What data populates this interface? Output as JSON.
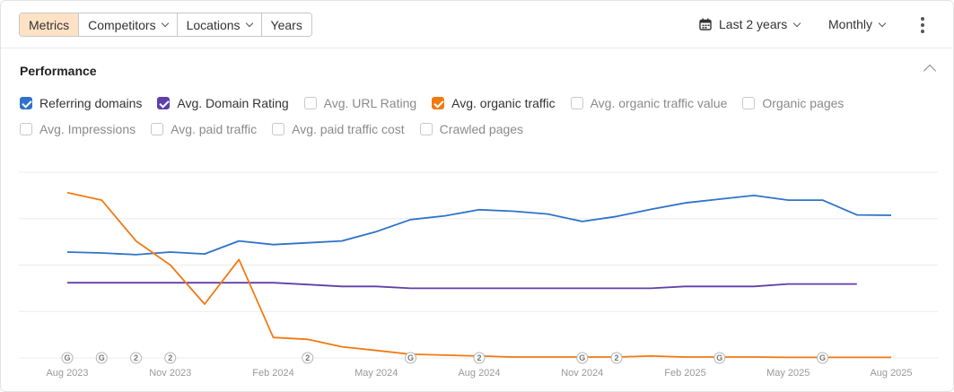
{
  "toolbar": {
    "tabs": [
      {
        "label": "Metrics",
        "active": true,
        "dropdown": false
      },
      {
        "label": "Competitors",
        "active": false,
        "dropdown": true
      },
      {
        "label": "Locations",
        "active": false,
        "dropdown": true
      },
      {
        "label": "Years",
        "active": false,
        "dropdown": false
      }
    ],
    "date_range": "Last 2 years",
    "interval": "Monthly",
    "icons": {
      "date_range": "calendar-icon",
      "more": "more-vertical-icon"
    }
  },
  "section": {
    "title": "Performance",
    "collapse_icon": "chevron-up-icon"
  },
  "metrics": [
    {
      "label": "Referring domains",
      "checked": true,
      "color": "#2f73c9"
    },
    {
      "label": "Avg. Domain Rating",
      "checked": true,
      "color": "#5f3fa8"
    },
    {
      "label": "Avg. URL Rating",
      "checked": false,
      "color": ""
    },
    {
      "label": "Avg. organic traffic",
      "checked": true,
      "color": "#f07a12"
    },
    {
      "label": "Avg. organic traffic value",
      "checked": false,
      "color": ""
    },
    {
      "label": "Organic pages",
      "checked": false,
      "color": ""
    },
    {
      "label": "Avg. Impressions",
      "checked": false,
      "color": ""
    },
    {
      "label": "Avg. paid traffic",
      "checked": false,
      "color": ""
    },
    {
      "label": "Avg. paid traffic cost",
      "checked": false,
      "color": ""
    },
    {
      "label": "Crawled pages",
      "checked": false,
      "color": ""
    }
  ],
  "chart_data": {
    "type": "line",
    "x": [
      "Aug 2023",
      "Sep 2023",
      "Oct 2023",
      "Nov 2023",
      "Dec 2023",
      "Jan 2024",
      "Feb 2024",
      "Mar 2024",
      "Apr 2024",
      "May 2024",
      "Jun 2024",
      "Jul 2024",
      "Aug 2024",
      "Sep 2024",
      "Oct 2024",
      "Nov 2024",
      "Dec 2024",
      "Jan 2025",
      "Feb 2025",
      "Mar 2025",
      "Apr 2025",
      "May 2025",
      "Jun 2025",
      "Jul 2025",
      "Aug 2025"
    ],
    "tick_labels": [
      "Aug 2023",
      "Nov 2023",
      "Feb 2024",
      "May 2024",
      "Aug 2024",
      "Nov 2024",
      "Feb 2025",
      "May 2025",
      "Aug 2025"
    ],
    "ylim": [
      0,
      100
    ],
    "grid": true,
    "series": [
      {
        "metric": "Referring domains",
        "color": "#2f73c9",
        "values": [
          57.0,
          56.5,
          55.6,
          57.0,
          56.0,
          63.0,
          61.0,
          62.0,
          63.0,
          68.0,
          74.5,
          76.5,
          79.8,
          79.0,
          77.5,
          73.5,
          76.2,
          80.0,
          83.5,
          85.5,
          87.5,
          85.0,
          85.0,
          77.0,
          76.8
        ]
      },
      {
        "metric": "Avg. Domain Rating",
        "color": "#5f3fa8",
        "values": [
          40.5,
          40.5,
          40.5,
          40.5,
          40.5,
          40.5,
          40.5,
          39.5,
          38.5,
          38.5,
          37.5,
          37.5,
          37.5,
          37.5,
          37.5,
          37.5,
          37.5,
          37.5,
          38.5,
          38.5,
          38.5,
          39.8,
          39.8,
          39.8,
          null
        ]
      },
      {
        "metric": "Avg. organic traffic",
        "color": "#f07a12",
        "values": [
          89,
          85,
          63,
          50,
          29,
          53,
          11,
          10,
          6,
          4,
          2,
          1.5,
          1,
          0.5,
          0.5,
          0.5,
          0.5,
          1,
          0.5,
          0.5,
          0.5,
          0.3,
          0.3,
          0.3,
          0.3
        ]
      }
    ],
    "annotations": [
      {
        "x": "Aug 2023",
        "label": "G"
      },
      {
        "x": "Sep 2023",
        "label": "G"
      },
      {
        "x": "Oct 2023",
        "label": "2"
      },
      {
        "x": "Nov 2023",
        "label": "2"
      },
      {
        "x": "Mar 2024",
        "label": "2"
      },
      {
        "x": "Jun 2024",
        "label": "G"
      },
      {
        "x": "Aug 2024",
        "label": "2"
      },
      {
        "x": "Nov 2024",
        "label": "G"
      },
      {
        "x": "Dec 2024",
        "label": "2"
      },
      {
        "x": "Mar 2025",
        "label": "G"
      },
      {
        "x": "Jun 2025",
        "label": "G"
      }
    ]
  }
}
